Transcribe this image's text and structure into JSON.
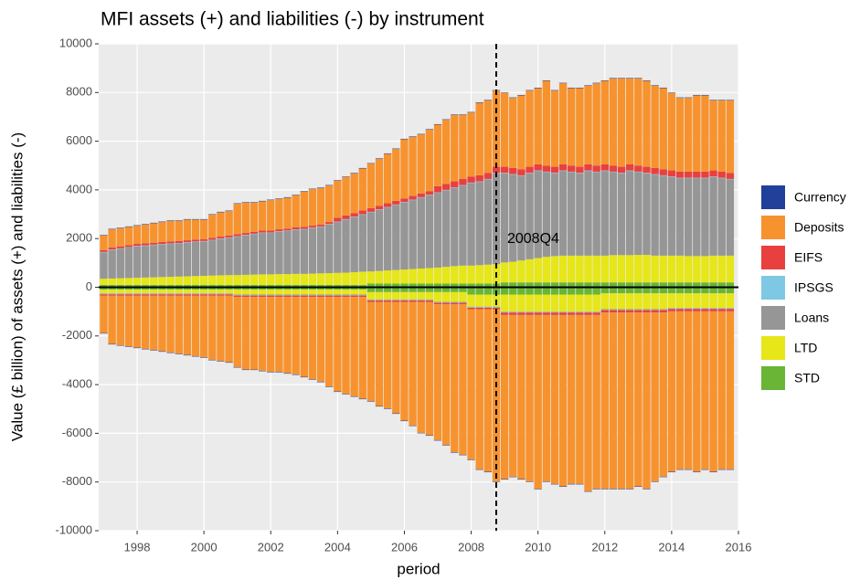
{
  "chart_data": {
    "type": "bar",
    "stacked": true,
    "title": "MFI assets (+) and liabilities (-) by instrument",
    "x_label": "period",
    "y_label": "Value (£ billion) of assets (+) and liabilities (-)",
    "xlim": [
      1996.85,
      2016.0
    ],
    "xticks": [
      1998,
      2000,
      2002,
      2004,
      2006,
      2008,
      2010,
      2012,
      2014,
      2016
    ],
    "ylim": [
      -10000,
      10000
    ],
    "yticks": [
      -10000,
      -8000,
      -6000,
      -4000,
      -2000,
      0,
      2000,
      4000,
      6000,
      8000,
      10000
    ],
    "grid": true,
    "legend": "right",
    "hline": 0,
    "vline": {
      "x": 2008.75,
      "label": "2008Q4"
    },
    "x": [
      1997,
      1997.25,
      1997.5,
      1997.75,
      1998,
      1998.25,
      1998.5,
      1998.75,
      1999,
      1999.25,
      1999.5,
      1999.75,
      2000,
      2000.25,
      2000.5,
      2000.75,
      2001,
      2001.25,
      2001.5,
      2001.75,
      2002,
      2002.25,
      2002.5,
      2002.75,
      2003,
      2003.25,
      2003.5,
      2003.75,
      2004,
      2004.25,
      2004.5,
      2004.75,
      2005,
      2005.25,
      2005.5,
      2005.75,
      2006,
      2006.25,
      2006.5,
      2006.75,
      2007,
      2007.25,
      2007.5,
      2007.75,
      2008,
      2008.25,
      2008.5,
      2008.75,
      2009,
      2009.25,
      2009.5,
      2009.75,
      2010,
      2010.25,
      2010.5,
      2010.75,
      2011,
      2011.25,
      2011.5,
      2011.75,
      2012,
      2012.25,
      2012.5,
      2012.75,
      2013,
      2013.25,
      2013.5,
      2013.75,
      2014,
      2014.25,
      2014.5,
      2014.75,
      2015,
      2015.25,
      2015.5,
      2015.75
    ],
    "series": [
      {
        "name": "Currency",
        "color": "#22409a",
        "assets": [
          20,
          20,
          20,
          20,
          20,
          20,
          20,
          20,
          20,
          20,
          20,
          20,
          20,
          20,
          20,
          20,
          20,
          20,
          20,
          20,
          20,
          20,
          20,
          20,
          20,
          20,
          20,
          20,
          20,
          20,
          20,
          20,
          20,
          20,
          20,
          20,
          20,
          20,
          20,
          20,
          20,
          20,
          20,
          20,
          20,
          20,
          20,
          20,
          20,
          20,
          20,
          20,
          20,
          20,
          20,
          20,
          20,
          20,
          20,
          20,
          20,
          20,
          20,
          20,
          20,
          20,
          20,
          20,
          20,
          20,
          20,
          20,
          20,
          20,
          20,
          20
        ],
        "liabilities": [
          -20,
          -20,
          -20,
          -20,
          -20,
          -20,
          -20,
          -20,
          -20,
          -20,
          -20,
          -20,
          -20,
          -20,
          -20,
          -20,
          -20,
          -20,
          -20,
          -20,
          -20,
          -20,
          -20,
          -20,
          -20,
          -20,
          -20,
          -20,
          -20,
          -20,
          -20,
          -20,
          -20,
          -20,
          -20,
          -20,
          -20,
          -20,
          -20,
          -20,
          -20,
          -20,
          -20,
          -20,
          -20,
          -20,
          -20,
          -20,
          -20,
          -20,
          -20,
          -20,
          -20,
          -20,
          -20,
          -20,
          -20,
          -20,
          -20,
          -20,
          -20,
          -20,
          -20,
          -20,
          -20,
          -20,
          -20,
          -20,
          -20,
          -20,
          -20,
          -20,
          -20,
          -20,
          -20,
          -20
        ]
      },
      {
        "name": "Deposits",
        "color": "#f7932f",
        "assets": [
          600,
          750,
          750,
          750,
          750,
          780,
          800,
          820,
          850,
          830,
          850,
          820,
          800,
          950,
          1000,
          1000,
          1250,
          1250,
          1200,
          1200,
          1250,
          1250,
          1270,
          1320,
          1450,
          1500,
          1500,
          1500,
          1530,
          1580,
          1630,
          1730,
          1830,
          1930,
          2030,
          2130,
          2430,
          2430,
          2430,
          2530,
          2530,
          2630,
          2730,
          2630,
          2630,
          2980,
          2980,
          3130,
          3030,
          2880,
          3030,
          3130,
          3130,
          3480,
          3130,
          3330,
          3180,
          3230,
          3230,
          3380,
          3430,
          3580,
          3630,
          3530,
          3580,
          3530,
          3380,
          3330,
          3180,
          3030,
          3030,
          3130,
          3130,
          2880,
          2930,
          2980
        ],
        "liabilities": [
          -1530,
          -1980,
          -2030,
          -2080,
          -2130,
          -2180,
          -2230,
          -2280,
          -2330,
          -2380,
          -2430,
          -2480,
          -2530,
          -2630,
          -2680,
          -2730,
          -2880,
          -2980,
          -2980,
          -3030,
          -3080,
          -3080,
          -3130,
          -3180,
          -3280,
          -3380,
          -3480,
          -3680,
          -3880,
          -3980,
          -4080,
          -4180,
          -4080,
          -4280,
          -4380,
          -4580,
          -4880,
          -5080,
          -5380,
          -5480,
          -5580,
          -5780,
          -6080,
          -6180,
          -6180,
          -6580,
          -6680,
          -7080,
          -6740,
          -6640,
          -6740,
          -6840,
          -7140,
          -6840,
          -6940,
          -7040,
          -6940,
          -6940,
          -7240,
          -7140,
          -7240,
          -7240,
          -7240,
          -7240,
          -7140,
          -7240,
          -6940,
          -6740,
          -6590,
          -6490,
          -6490,
          -6590,
          -6490,
          -6590,
          -6490,
          -6490
        ]
      },
      {
        "name": "EIFS",
        "color": "#e8403f",
        "assets": [
          80,
          80,
          80,
          80,
          80,
          80,
          80,
          80,
          80,
          80,
          80,
          80,
          80,
          80,
          80,
          80,
          80,
          80,
          80,
          80,
          80,
          80,
          80,
          80,
          80,
          80,
          80,
          80,
          150,
          150,
          150,
          150,
          150,
          150,
          150,
          150,
          150,
          150,
          150,
          150,
          250,
          250,
          250,
          250,
          250,
          250,
          250,
          250,
          250,
          250,
          250,
          250,
          250,
          250,
          250,
          250,
          250,
          250,
          250,
          250,
          250,
          250,
          250,
          250,
          250,
          250,
          250,
          250,
          250,
          250,
          250,
          250,
          250,
          250,
          250,
          250
        ],
        "liabilities": [
          -60,
          -60,
          -60,
          -60,
          -60,
          -60,
          -60,
          -60,
          -60,
          -60,
          -60,
          -60,
          -60,
          -60,
          -60,
          -60,
          -60,
          -60,
          -60,
          -60,
          -60,
          -60,
          -60,
          -60,
          -60,
          -60,
          -60,
          -60,
          -60,
          -60,
          -60,
          -60,
          -60,
          -60,
          -60,
          -60,
          -60,
          -60,
          -60,
          -60,
          -60,
          -60,
          -60,
          -60,
          -60,
          -60,
          -60,
          -60,
          -100,
          -100,
          -100,
          -100,
          -100,
          -100,
          -100,
          -100,
          -100,
          -100,
          -100,
          -100,
          -100,
          -100,
          -100,
          -100,
          -100,
          -100,
          -100,
          -100,
          -100,
          -100,
          -100,
          -100,
          -100,
          -100,
          -100,
          -100
        ]
      },
      {
        "name": "IPSGS",
        "color": "#7ec8e3",
        "assets": [
          20,
          20,
          20,
          20,
          20,
          20,
          20,
          20,
          20,
          20,
          20,
          20,
          20,
          20,
          20,
          20,
          20,
          20,
          20,
          20,
          20,
          20,
          20,
          20,
          20,
          20,
          20,
          20,
          20,
          20,
          20,
          20,
          20,
          20,
          20,
          20,
          20,
          20,
          20,
          20,
          20,
          20,
          20,
          20,
          20,
          20,
          20,
          20,
          20,
          20,
          20,
          20,
          20,
          20,
          20,
          20,
          20,
          20,
          20,
          20,
          20,
          20,
          20,
          20,
          20,
          20,
          20,
          20,
          20,
          20,
          20,
          20,
          20,
          20,
          20,
          20
        ],
        "liabilities": [
          -20,
          -20,
          -20,
          -20,
          -20,
          -20,
          -20,
          -20,
          -20,
          -20,
          -20,
          -20,
          -20,
          -20,
          -20,
          -20,
          -20,
          -20,
          -20,
          -20,
          -20,
          -20,
          -20,
          -20,
          -20,
          -20,
          -20,
          -20,
          -20,
          -20,
          -20,
          -20,
          -20,
          -20,
          -20,
          -20,
          -20,
          -20,
          -20,
          -20,
          -20,
          -20,
          -20,
          -20,
          -20,
          -20,
          -20,
          -20,
          -20,
          -20,
          -20,
          -20,
          -20,
          -20,
          -20,
          -20,
          -20,
          -20,
          -20,
          -20,
          -20,
          -20,
          -20,
          -20,
          -20,
          -20,
          -20,
          -20,
          -20,
          -20,
          -20,
          -20,
          -20,
          -20,
          -20,
          -20
        ]
      },
      {
        "name": "Loans",
        "color": "#969696",
        "assets": [
          1080,
          1170,
          1210,
          1250,
          1290,
          1300,
          1320,
          1340,
          1350,
          1360,
          1380,
          1400,
          1410,
          1450,
          1490,
          1530,
          1580,
          1620,
          1660,
          1700,
          1700,
          1740,
          1770,
          1810,
          1830,
          1870,
          1910,
          2000,
          2090,
          2180,
          2260,
          2340,
          2430,
          2510,
          2590,
          2670,
          2750,
          2830,
          2910,
          2990,
          3070,
          3140,
          3210,
          3290,
          3390,
          3420,
          3500,
          3730,
          3660,
          3580,
          3480,
          3530,
          3580,
          3480,
          3400,
          3480,
          3430,
          3380,
          3480,
          3430,
          3480,
          3410,
          3360,
          3460,
          3400,
          3350,
          3330,
          3280,
          3230,
          3180,
          3200,
          3200,
          3200,
          3230,
          3180,
          3130
        ],
        "liabilities": [
          -20,
          -20,
          -20,
          -20,
          -20,
          -20,
          -20,
          -20,
          -20,
          -20,
          -20,
          -20,
          -20,
          -20,
          -20,
          -20,
          -20,
          -20,
          -20,
          -20,
          -20,
          -20,
          -20,
          -20,
          -20,
          -20,
          -20,
          -20,
          -20,
          -20,
          -20,
          -20,
          -20,
          -20,
          -20,
          -20,
          -20,
          -20,
          -20,
          -20,
          -20,
          -20,
          -20,
          -20,
          -20,
          -20,
          -20,
          -20,
          -20,
          -20,
          -20,
          -20,
          -20,
          -20,
          -20,
          -20,
          -20,
          -20,
          -20,
          -20,
          -20,
          -20,
          -20,
          -20,
          -20,
          -20,
          -20,
          -20,
          -20,
          -20,
          -20,
          -20,
          -20,
          -20,
          -20,
          -20
        ]
      },
      {
        "name": "LTD",
        "color": "#e6e619",
        "assets": [
          250,
          260,
          270,
          280,
          290,
          300,
          310,
          320,
          330,
          340,
          350,
          360,
          370,
          380,
          390,
          400,
          400,
          410,
          420,
          430,
          430,
          440,
          440,
          450,
          450,
          460,
          470,
          480,
          490,
          500,
          520,
          540,
          500,
          520,
          540,
          560,
          580,
          600,
          620,
          640,
          660,
          690,
          720,
          740,
          740,
          760,
          780,
          800,
          820,
          850,
          900,
          950,
          1000,
          1050,
          1080,
          1100,
          1100,
          1100,
          1100,
          1100,
          1100,
          1120,
          1120,
          1120,
          1130,
          1130,
          1100,
          1100,
          1100,
          1100,
          1080,
          1080,
          1080,
          1100,
          1100,
          1100
        ],
        "liabilities": [
          -150,
          -150,
          -150,
          -150,
          -150,
          -150,
          -150,
          -150,
          -150,
          -150,
          -150,
          -150,
          -150,
          -150,
          -150,
          -150,
          -200,
          -200,
          -200,
          -200,
          -200,
          -200,
          -200,
          -200,
          -200,
          -200,
          -200,
          -200,
          -200,
          -200,
          -200,
          -200,
          -300,
          -300,
          -300,
          -300,
          -300,
          -300,
          -300,
          -300,
          -400,
          -400,
          -400,
          -400,
          -500,
          -500,
          -500,
          -500,
          -700,
          -700,
          -700,
          -700,
          -700,
          -700,
          -700,
          -700,
          -700,
          -700,
          -700,
          -700,
          -650,
          -650,
          -650,
          -650,
          -650,
          -650,
          -650,
          -650,
          -600,
          -600,
          -600,
          -600,
          -600,
          -600,
          -600,
          -600
        ]
      },
      {
        "name": "STD",
        "color": "#6ab536",
        "assets": [
          100,
          100,
          100,
          100,
          100,
          100,
          100,
          100,
          100,
          100,
          100,
          100,
          100,
          100,
          100,
          100,
          100,
          100,
          100,
          100,
          100,
          100,
          100,
          100,
          100,
          100,
          100,
          100,
          100,
          100,
          100,
          100,
          150,
          150,
          150,
          150,
          150,
          150,
          150,
          150,
          150,
          150,
          150,
          150,
          150,
          150,
          150,
          150,
          200,
          200,
          200,
          200,
          200,
          200,
          200,
          200,
          200,
          200,
          200,
          200,
          200,
          200,
          200,
          200,
          200,
          200,
          200,
          200,
          200,
          200,
          200,
          200,
          200,
          200,
          200,
          200
        ],
        "liabilities": [
          -100,
          -100,
          -100,
          -100,
          -100,
          -100,
          -100,
          -100,
          -100,
          -100,
          -100,
          -100,
          -100,
          -100,
          -100,
          -100,
          -100,
          -100,
          -100,
          -100,
          -100,
          -100,
          -100,
          -100,
          -100,
          -100,
          -100,
          -100,
          -100,
          -100,
          -100,
          -100,
          -200,
          -200,
          -200,
          -200,
          -200,
          -200,
          -200,
          -200,
          -200,
          -200,
          -200,
          -200,
          -300,
          -300,
          -300,
          -300,
          -300,
          -300,
          -300,
          -300,
          -300,
          -300,
          -300,
          -300,
          -300,
          -300,
          -300,
          -300,
          -250,
          -250,
          -250,
          -250,
          -250,
          -250,
          -250,
          -250,
          -250,
          -250,
          -250,
          -250,
          -250,
          -250,
          -250,
          -250
        ]
      }
    ]
  }
}
